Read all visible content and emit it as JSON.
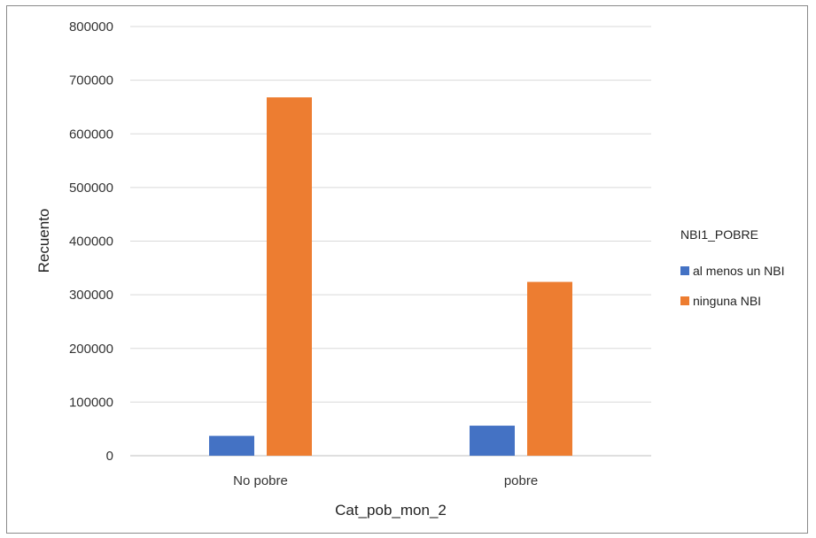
{
  "chart_data": {
    "type": "bar",
    "categories": [
      "No pobre",
      "pobre"
    ],
    "series": [
      {
        "name": "al menos un NBI",
        "values": [
          37000,
          56000
        ],
        "color": "#4472C4"
      },
      {
        "name": "ninguna NBI",
        "values": [
          668000,
          324000
        ],
        "color": "#ED7D31"
      }
    ],
    "xlabel": "Cat_pob_mon_2",
    "ylabel": "Recuento",
    "ylim": [
      0,
      800000
    ],
    "yticks": [
      "0",
      "100000",
      "200000",
      "300000",
      "400000",
      "500000",
      "600000",
      "700000",
      "800000"
    ],
    "grid": true,
    "legend_title": "NBI1_POBRE",
    "legend_position": "right"
  }
}
